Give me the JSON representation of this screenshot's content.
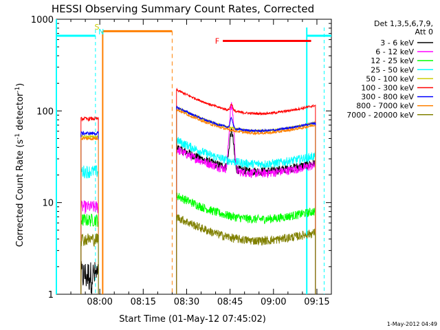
{
  "chart_data": {
    "type": "line",
    "title": "HESSI Observing Summary Count Rates, Corrected",
    "xlabel": "Start Time (01-May-12 07:45:02)",
    "ylabel_main": "Corrected Count Rate (s",
    "ylabel_sup1": "-1",
    "ylabel_mid": " detector",
    "ylabel_sup2": "-1",
    "ylabel_end": ")",
    "ylabel": "Corrected Count Rate (s-1 detector-1)",
    "y_scale": "log",
    "ylim": [
      1,
      1000
    ],
    "xlim_minutes": [
      0,
      95
    ],
    "x_ticks": [
      {
        "minute": 15,
        "label": "08:00"
      },
      {
        "minute": 30,
        "label": "08:15"
      },
      {
        "minute": 45,
        "label": "08:30"
      },
      {
        "minute": 60,
        "label": "08:45"
      },
      {
        "minute": 75,
        "label": "09:00"
      },
      {
        "minute": 90,
        "label": "09:15"
      }
    ],
    "y_ticks": [
      {
        "value": 1,
        "label": "1"
      },
      {
        "value": 10,
        "label": "10"
      },
      {
        "value": 100,
        "label": "100"
      },
      {
        "value": 1000,
        "label": "1000"
      }
    ],
    "legend_header": [
      "Det 1,3,5,6,7,9,",
      "Att 0"
    ],
    "legend_position": "right",
    "series": [
      {
        "name": "3 - 6 keV",
        "color": "#000000",
        "base": 20,
        "seg1": 1.5
      },
      {
        "name": "6 - 12 keV",
        "color": "#ff00ff",
        "base": 19,
        "seg1": 9
      },
      {
        "name": "12 - 25 keV",
        "color": "#00ff00",
        "base": 6,
        "seg1": 6.5
      },
      {
        "name": "25 - 50 keV",
        "color": "#00ffff",
        "base": 24,
        "seg1": 22
      },
      {
        "name": "50 - 100 keV",
        "color": "#cccc00",
        "base": 55,
        "seg1": 52
      },
      {
        "name": "100 - 300 keV",
        "color": "#ff0000",
        "base": 85,
        "seg1": 82
      },
      {
        "name": "300 - 800 keV",
        "color": "#0000ff",
        "base": 55,
        "seg1": 57
      },
      {
        "name": "800 - 7000 keV",
        "color": "#ff8000",
        "base": 52,
        "seg1": 50
      },
      {
        "name": "7000 - 20000 keV",
        "color": "#808000",
        "base": 3.5,
        "seg1": 4
      }
    ],
    "annotations": [
      {
        "label": "S",
        "color": "#cccc00",
        "minute": 14
      },
      {
        "label": "N",
        "color": "#00ffff",
        "minute": 15.5
      }
    ],
    "flags": [
      {
        "label": "F",
        "color": "#ff0000",
        "start": 57.5,
        "end": 88,
        "level": 580
      }
    ],
    "footer_date": "1-May-2012 04:49"
  }
}
